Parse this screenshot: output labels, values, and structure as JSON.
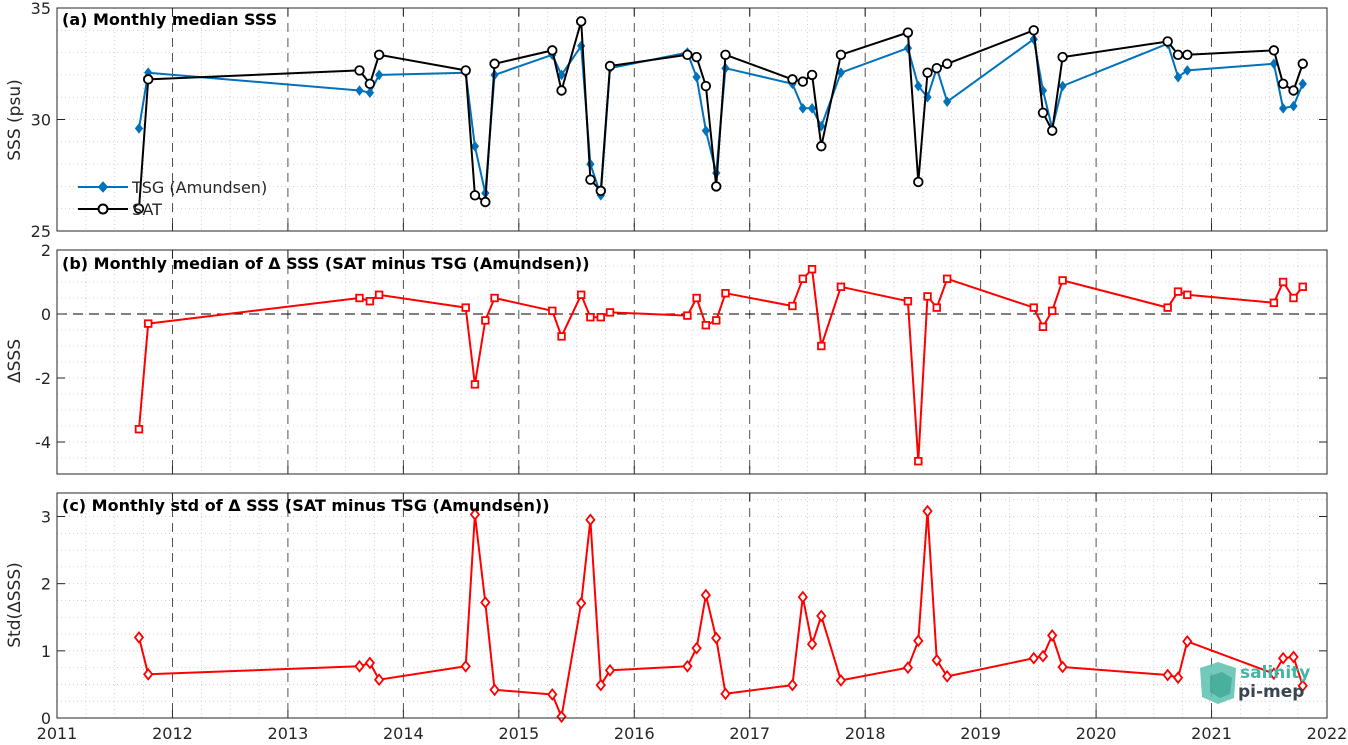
{
  "chart_data": [
    {
      "id": "a",
      "type": "line",
      "title": "(a) Monthly median SSS",
      "ylabel": "SSS (psu)",
      "ylim": [
        25,
        35
      ],
      "yticks": [
        25,
        30,
        35
      ],
      "xlim": [
        2011,
        2022
      ],
      "xticks": [
        2011,
        2012,
        2013,
        2014,
        2015,
        2016,
        2017,
        2018,
        2019,
        2020,
        2021,
        2022
      ],
      "grid": "dotted minor, dashed major vertical",
      "legend_position": "bottom-left",
      "series": [
        {
          "name": "TSG (Amundsen)",
          "color": "#0072BD",
          "marker": "diamond-filled",
          "x": [
            2011.71,
            2011.79,
            2013.62,
            2013.71,
            2013.79,
            2014.54,
            2014.62,
            2014.71,
            2014.79,
            2015.29,
            2015.37,
            2015.54,
            2015.62,
            2015.71,
            2015.79,
            2016.46,
            2016.54,
            2016.62,
            2016.71,
            2016.79,
            2017.37,
            2017.46,
            2017.54,
            2017.62,
            2017.79,
            2018.37,
            2018.46,
            2018.54,
            2018.62,
            2018.71,
            2019.46,
            2019.54,
            2019.62,
            2019.71,
            2020.62,
            2020.71,
            2020.79,
            2021.54,
            2021.62,
            2021.71,
            2021.79
          ],
          "y": [
            29.6,
            32.1,
            31.3,
            31.2,
            32.0,
            32.1,
            28.8,
            26.7,
            32.0,
            32.9,
            32.0,
            33.3,
            28.0,
            26.6,
            32.3,
            33.0,
            31.9,
            29.5,
            27.6,
            32.3,
            31.6,
            30.5,
            30.5,
            29.7,
            32.1,
            33.2,
            31.5,
            31.0,
            32.3,
            30.8,
            33.6,
            31.3,
            29.6,
            31.5,
            33.4,
            31.9,
            32.2,
            32.5,
            30.5,
            30.6,
            31.6
          ]
        },
        {
          "name": "SAT",
          "color": "#000000",
          "marker": "circle-open",
          "x": [
            2011.71,
            2011.79,
            2013.62,
            2013.71,
            2013.79,
            2014.54,
            2014.62,
            2014.71,
            2014.79,
            2015.29,
            2015.37,
            2015.54,
            2015.62,
            2015.71,
            2015.79,
            2016.46,
            2016.54,
            2016.62,
            2016.71,
            2016.79,
            2017.37,
            2017.46,
            2017.54,
            2017.62,
            2017.79,
            2018.37,
            2018.46,
            2018.54,
            2018.62,
            2018.71,
            2019.46,
            2019.54,
            2019.62,
            2019.71,
            2020.62,
            2020.71,
            2020.79,
            2021.54,
            2021.62,
            2021.71,
            2021.79
          ],
          "y": [
            26.0,
            31.8,
            32.2,
            31.6,
            32.9,
            32.2,
            26.6,
            26.3,
            32.5,
            33.1,
            31.3,
            34.4,
            27.3,
            26.8,
            32.4,
            32.9,
            32.8,
            31.5,
            27.0,
            32.9,
            31.8,
            31.7,
            32.0,
            28.8,
            32.9,
            33.9,
            27.2,
            32.1,
            32.3,
            32.5,
            34.0,
            30.3,
            29.5,
            32.8,
            33.5,
            32.9,
            32.9,
            33.1,
            31.6,
            31.3,
            32.5
          ]
        }
      ]
    },
    {
      "id": "b",
      "type": "line",
      "title": "(b) Monthly median of Δ SSS (SAT minus TSG (Amundsen))",
      "ylabel": "ΔSSS",
      "ylim": [
        -5,
        2
      ],
      "yticks": [
        -4,
        -2,
        0,
        2
      ],
      "xlim": [
        2011,
        2022
      ],
      "zero_line": "dashed",
      "series": [
        {
          "name": "",
          "color": "#FF0000",
          "marker": "square-open",
          "x": [
            2011.71,
            2011.79,
            2013.62,
            2013.71,
            2013.79,
            2014.54,
            2014.62,
            2014.71,
            2014.79,
            2015.29,
            2015.37,
            2015.54,
            2015.62,
            2015.71,
            2015.79,
            2016.46,
            2016.54,
            2016.62,
            2016.71,
            2016.79,
            2017.37,
            2017.46,
            2017.54,
            2017.62,
            2017.79,
            2018.37,
            2018.46,
            2018.54,
            2018.62,
            2018.71,
            2019.46,
            2019.54,
            2019.62,
            2019.71,
            2020.62,
            2020.71,
            2020.79,
            2021.54,
            2021.62,
            2021.71,
            2021.79
          ],
          "y": [
            -3.6,
            -0.3,
            0.5,
            0.4,
            0.6,
            0.2,
            -2.2,
            -0.2,
            0.5,
            0.1,
            -0.7,
            0.6,
            -0.1,
            -0.1,
            0.05,
            -0.05,
            0.5,
            -0.35,
            -0.2,
            0.65,
            0.25,
            1.1,
            1.4,
            -1.0,
            0.85,
            0.4,
            -4.6,
            0.55,
            0.2,
            1.1,
            0.2,
            -0.4,
            0.1,
            1.05,
            0.2,
            0.7,
            0.6,
            0.35,
            1.0,
            0.5,
            0.85
          ]
        }
      ]
    },
    {
      "id": "c",
      "type": "line",
      "title": "(c) Monthly std of Δ SSS (SAT minus TSG (Amundsen))",
      "ylabel": "Std(ΔSSS)",
      "ylim": [
        0,
        3.35
      ],
      "yticks": [
        0,
        1,
        2,
        3
      ],
      "xlim": [
        2011,
        2022
      ],
      "series": [
        {
          "name": "",
          "color": "#FF0000",
          "marker": "diamond-open",
          "x": [
            2011.71,
            2011.79,
            2013.62,
            2013.71,
            2013.79,
            2014.54,
            2014.62,
            2014.71,
            2014.79,
            2015.29,
            2015.37,
            2015.54,
            2015.62,
            2015.71,
            2015.79,
            2016.46,
            2016.54,
            2016.62,
            2016.71,
            2016.79,
            2017.37,
            2017.46,
            2017.54,
            2017.62,
            2017.79,
            2018.37,
            2018.46,
            2018.54,
            2018.62,
            2018.71,
            2019.46,
            2019.54,
            2019.62,
            2019.71,
            2020.62,
            2020.71,
            2020.79,
            2021.54,
            2021.62,
            2021.71,
            2021.79
          ],
          "y": [
            1.2,
            0.65,
            0.77,
            0.82,
            0.57,
            0.77,
            3.03,
            1.72,
            0.42,
            0.35,
            0.02,
            1.71,
            2.95,
            0.49,
            0.71,
            0.77,
            1.04,
            1.83,
            1.19,
            0.36,
            0.49,
            1.8,
            1.1,
            1.52,
            0.56,
            0.75,
            1.15,
            3.08,
            0.86,
            0.62,
            0.89,
            0.92,
            1.23,
            0.76,
            0.64,
            0.6,
            1.14,
            0.66,
            0.89,
            0.91,
            0.48
          ]
        }
      ]
    }
  ],
  "logo": {
    "line1": "salinity",
    "line2": "pi-mep",
    "accent": "#45b5a3"
  }
}
